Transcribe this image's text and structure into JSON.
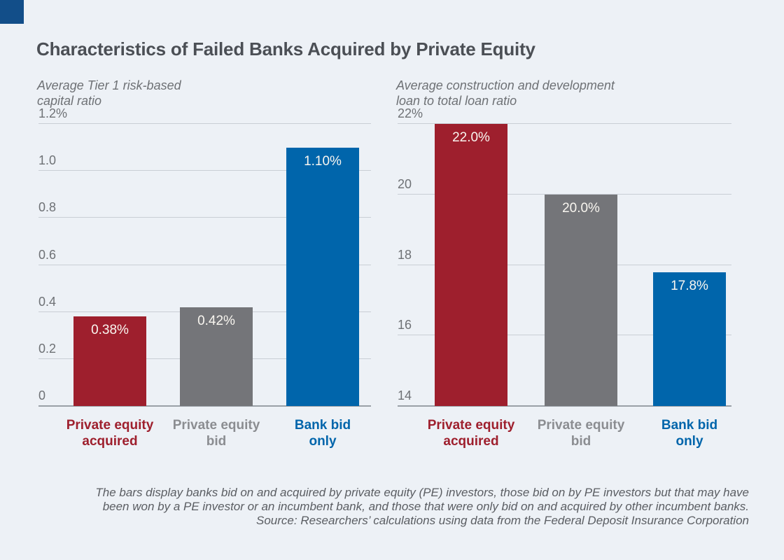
{
  "page": {
    "title": "Characteristics of Failed Banks Acquired by Private Equity",
    "background_color": "#edf1f6",
    "corner_mark_color": "#124e89"
  },
  "colors": {
    "pe_acquired_red": "#9e1f2d",
    "pe_bid_gray": "#747579",
    "bank_bid_only_blue": "#0065ab",
    "category_gray_text": "#8b8d91",
    "gridline": "#c9ced5",
    "axis_line": "#9aa0a7",
    "bar_value_text": "#f9f6f0"
  },
  "chart_data": [
    {
      "type": "bar",
      "title_lines": [
        "Average Tier 1 risk-based",
        "capital ratio"
      ],
      "categories": [
        "Private equity acquired",
        "Private equity bid",
        "Bank bid only"
      ],
      "category_label_lines": [
        [
          "Private equity",
          "acquired"
        ],
        [
          "Private equity",
          "bid"
        ],
        [
          "Bank bid",
          "only"
        ]
      ],
      "values": [
        0.38,
        0.42,
        1.1
      ],
      "value_labels": [
        "0.38%",
        "0.42%",
        "1.10%"
      ],
      "bar_colors": [
        "#9e1f2d",
        "#747579",
        "#0065ab"
      ],
      "category_colors": [
        "#9e1f2d",
        "#8b8d91",
        "#0065ab"
      ],
      "ylim": [
        0,
        1.2
      ],
      "yticks": [
        1.2,
        1.0,
        0.8,
        0.6,
        0.4,
        0.2,
        0
      ],
      "ytick_labels": [
        "1.2%",
        "1.0",
        "0.8",
        "0.6",
        "0.4",
        "0.2",
        "0"
      ],
      "grid": true,
      "legend": "none"
    },
    {
      "type": "bar",
      "title_lines": [
        "Average construction and development",
        "loan to total loan ratio"
      ],
      "categories": [
        "Private equity acquired",
        "Private equity bid",
        "Bank bid only"
      ],
      "category_label_lines": [
        [
          "Private equity",
          "acquired"
        ],
        [
          "Private equity",
          "bid"
        ],
        [
          "Bank bid",
          "only"
        ]
      ],
      "values": [
        22.0,
        20.0,
        17.8
      ],
      "value_labels": [
        "22.0%",
        "20.0%",
        "17.8%"
      ],
      "bar_colors": [
        "#9e1f2d",
        "#747579",
        "#0065ab"
      ],
      "category_colors": [
        "#9e1f2d",
        "#8b8d91",
        "#0065ab"
      ],
      "ylim": [
        14,
        22
      ],
      "yticks": [
        22,
        20,
        18,
        16,
        14
      ],
      "ytick_labels": [
        "22%",
        "20",
        "18",
        "16",
        "14"
      ],
      "grid": true,
      "legend": "none"
    }
  ],
  "footer": {
    "line1": "The bars display banks bid on and acquired by private equity (PE) investors, those bid on by PE investors but that may have",
    "line2": "been won by a PE investor or an incumbent bank, and those that were only bid on and acquired by other incumbent banks.",
    "line3": "Source: Researchers’ calculations using data from the Federal Deposit Insurance Corporation"
  }
}
